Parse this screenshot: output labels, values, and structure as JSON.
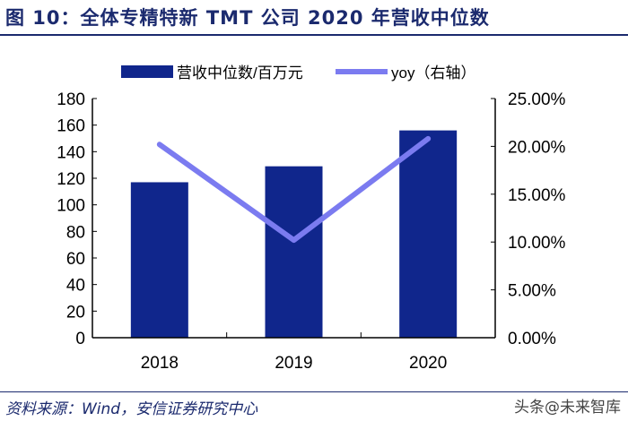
{
  "title": "图 10：全体专精特新 TMT 公司 2020 年营收中位数",
  "source": "资料来源：Wind，安信证券研究中心",
  "watermark": "头条@未来智库",
  "chart_data": {
    "type": "bar+line",
    "categories": [
      "2018",
      "2019",
      "2020"
    ],
    "series": [
      {
        "name": "营收中位数/百万元",
        "type": "bar",
        "axis": "left",
        "color": "#10268c",
        "values": [
          117,
          129,
          156
        ]
      },
      {
        "name": "yoy（右轴）",
        "type": "line",
        "axis": "right",
        "color": "#7b7bf0",
        "values": [
          20.2,
          10.2,
          20.8
        ]
      }
    ],
    "y_left": {
      "lim": [
        0,
        180
      ],
      "ticks": [
        "0",
        "20",
        "40",
        "60",
        "80",
        "100",
        "120",
        "140",
        "160",
        "180"
      ]
    },
    "y_right": {
      "lim": [
        0,
        25
      ],
      "ticks": [
        "0.00%",
        "5.00%",
        "10.00%",
        "15.00%",
        "20.00%",
        "25.00%"
      ]
    },
    "legend": "top",
    "grid": false
  }
}
